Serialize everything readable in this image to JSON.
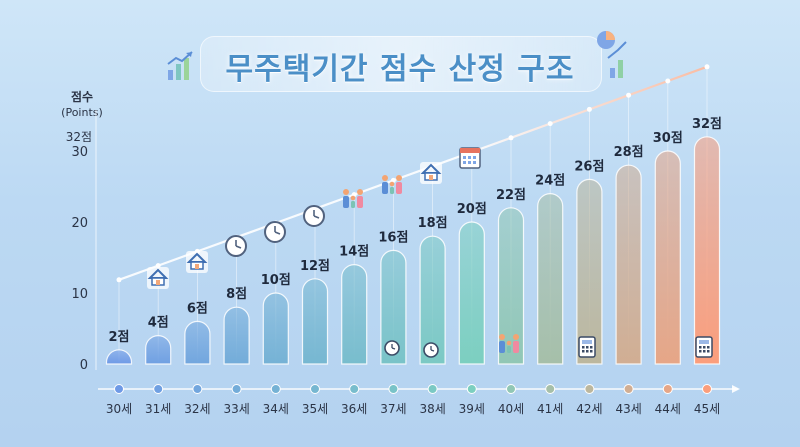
{
  "title": "무주택기간 점수 산정 구조",
  "icons": [
    "chart-up-icon",
    "pie-chart-icon",
    "house-icon",
    "clock-icon",
    "family-icon",
    "calendar-icon",
    "calculator-icon",
    "alarm-clock-icon"
  ],
  "colors": {
    "low": "#6f9ae6",
    "mid": "#7ccfc0",
    "high": "#fb9e7c",
    "title": "#4b8fc7"
  },
  "chart_data": {
    "type": "bar",
    "title": "무주택기간 점수 산정 구조",
    "ylabel": "점수",
    "ylabel_sub": "(Points)",
    "xlabel": "",
    "ylim": [
      0,
      32
    ],
    "yticks": [
      0,
      10,
      20,
      30
    ],
    "ymax_label": "32점",
    "categories": [
      "30세",
      "31세",
      "32세",
      "33세",
      "34세",
      "35세",
      "36세",
      "37세",
      "38세",
      "39세",
      "40세",
      "41세",
      "42세",
      "43세",
      "44세",
      "45세"
    ],
    "values": [
      2,
      4,
      6,
      8,
      10,
      12,
      14,
      16,
      18,
      20,
      22,
      24,
      26,
      28,
      30,
      32
    ],
    "data_labels": [
      "2점",
      "4점",
      "6점",
      "8점",
      "10점",
      "12점",
      "14점",
      "16점",
      "18점",
      "20점",
      "22점",
      "24점",
      "26점",
      "28점",
      "30점",
      "32점"
    ],
    "grid": false
  }
}
